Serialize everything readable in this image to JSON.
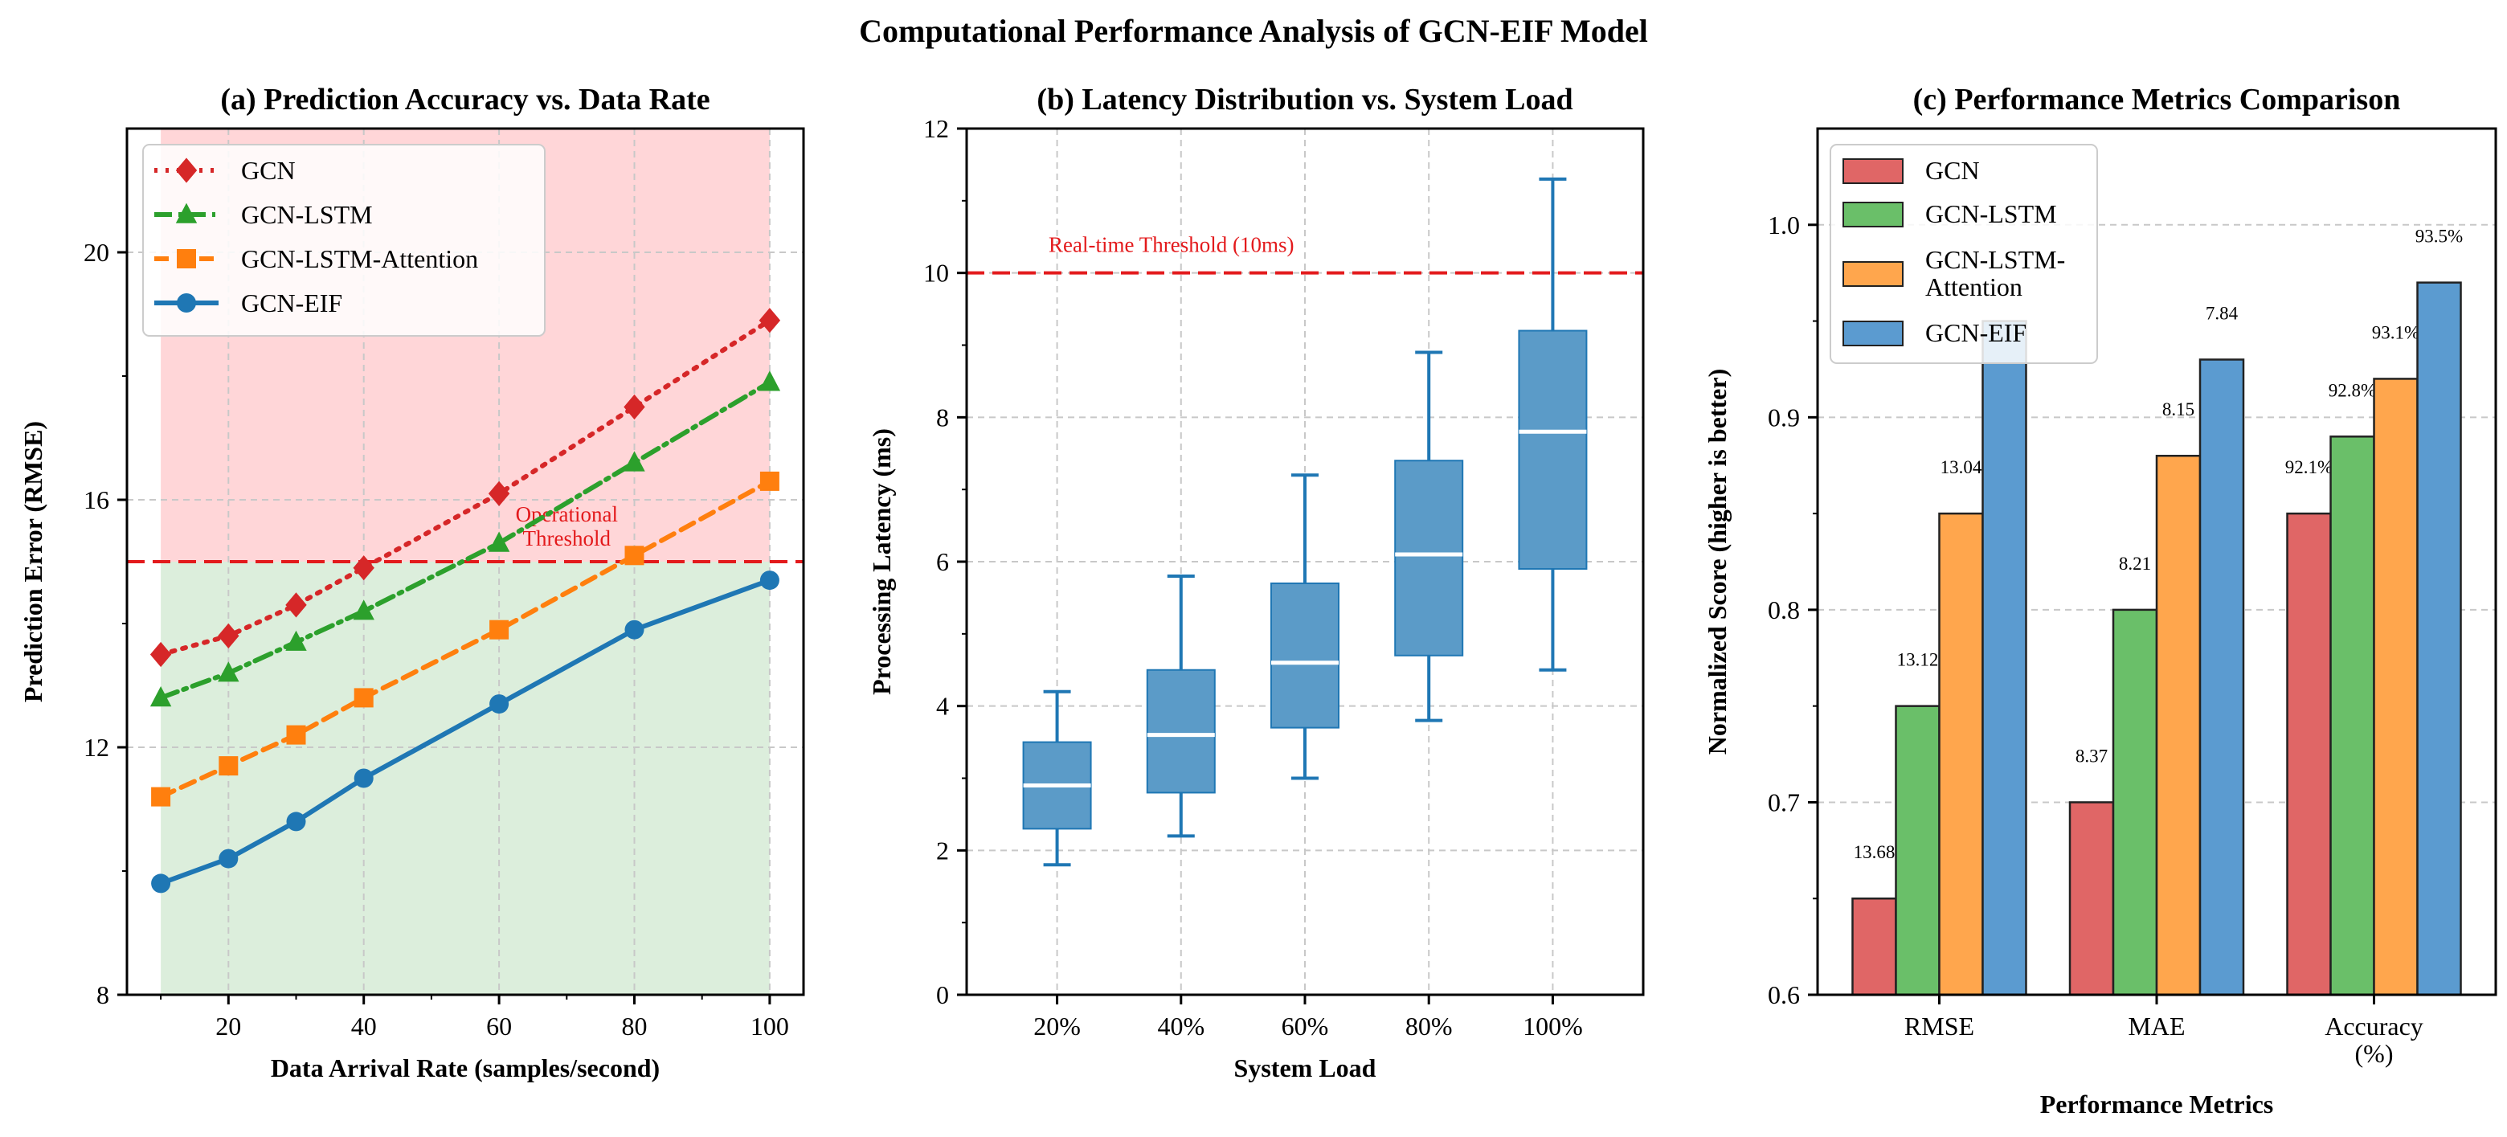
{
  "figure": {
    "title": "Computational Performance Analysis of GCN-EIF Model"
  },
  "colors": {
    "gcn": "#d62728",
    "gcn_lstm": "#2ca02c",
    "gcn_lstm_attention": "#ff7f0e",
    "gcn_eif": "#1f77b4",
    "threshold": "#e31a1c",
    "upper_region": "#ffd6d8",
    "lower_region": "#dceedc",
    "box_fill": "#5b9bc8",
    "bar_gcn": "#e06666",
    "bar_gcn_lstm": "#6abf69",
    "bar_gcn_lstm_attention": "#ffa64d",
    "bar_gcn_eif": "#5b9bd0"
  },
  "chart_data": [
    {
      "type": "line",
      "title": "(a) Prediction Accuracy vs. Data Rate",
      "xlabel": "Data Arrival Rate (samples/second)",
      "ylabel": "Prediction Error (RMSE)",
      "xlim": [
        5,
        105
      ],
      "ylim": [
        8,
        22
      ],
      "x_ticks": [
        20,
        40,
        60,
        80,
        100
      ],
      "y_ticks": [
        8,
        12,
        16,
        20
      ],
      "grid": true,
      "legend": "top-left",
      "x": [
        10,
        20,
        30,
        40,
        60,
        80,
        100
      ],
      "series": [
        {
          "name": "GCN",
          "values": [
            13.5,
            13.8,
            14.3,
            14.9,
            16.1,
            17.5,
            18.9
          ],
          "marker": "diamond",
          "dash": "dotted"
        },
        {
          "name": "GCN-LSTM",
          "values": [
            12.8,
            13.2,
            13.7,
            14.2,
            15.3,
            16.6,
            17.9
          ],
          "marker": "triangle",
          "dash": "dashdot"
        },
        {
          "name": "GCN-LSTM-Attention",
          "values": [
            11.2,
            11.7,
            12.2,
            12.8,
            13.9,
            15.1,
            16.3
          ],
          "marker": "square",
          "dash": "dashed"
        },
        {
          "name": "GCN-EIF",
          "values": [
            9.8,
            10.2,
            10.8,
            11.5,
            12.7,
            13.9,
            14.7
          ],
          "marker": "circle",
          "dash": "solid"
        }
      ],
      "threshold": {
        "value": 15,
        "label_line1": "Operational",
        "label_line2": "Threshold"
      },
      "shaded_x_range": [
        10,
        100
      ]
    },
    {
      "type": "box",
      "title": "(b) Latency Distribution vs. System Load",
      "xlabel": "System Load",
      "ylabel": "Processing Latency (ms)",
      "ylim": [
        0,
        12
      ],
      "y_ticks": [
        0,
        2,
        4,
        6,
        8,
        10,
        12
      ],
      "grid": true,
      "categories": [
        "20%",
        "40%",
        "60%",
        "80%",
        "100%"
      ],
      "boxes": [
        {
          "min": 1.8,
          "q1": 2.3,
          "median": 2.9,
          "q3": 3.5,
          "max": 4.2
        },
        {
          "min": 2.2,
          "q1": 2.8,
          "median": 3.6,
          "q3": 4.5,
          "max": 5.8
        },
        {
          "min": 3.0,
          "q1": 3.7,
          "median": 4.6,
          "q3": 5.7,
          "max": 7.2
        },
        {
          "min": 3.8,
          "q1": 4.7,
          "median": 6.1,
          "q3": 7.4,
          "max": 8.9
        },
        {
          "min": 4.5,
          "q1": 5.9,
          "median": 7.8,
          "q3": 9.2,
          "max": 11.3
        }
      ],
      "threshold": {
        "value": 10,
        "label": "Real-time Threshold (10ms)"
      }
    },
    {
      "type": "bar",
      "title": "(c) Performance Metrics Comparison",
      "xlabel": "Performance Metrics",
      "ylabel": "Normalized Score (higher is better)",
      "ylim": [
        0.6,
        1.05
      ],
      "y_ticks": [
        0.6,
        0.7,
        0.8,
        0.9,
        1.0
      ],
      "grid": true,
      "legend": "top-left",
      "categories": [
        "RMSE",
        "MAE",
        "Accuracy (%)"
      ],
      "category_labels": [
        [
          "RMSE"
        ],
        [
          "MAE"
        ],
        [
          "Accuracy",
          "(%)"
        ]
      ],
      "series": [
        {
          "name": "GCN",
          "values": [
            0.65,
            0.7,
            0.85
          ],
          "labels": [
            "13.68",
            "8.37",
            "92.1%"
          ]
        },
        {
          "name": "GCN-LSTM",
          "values": [
            0.75,
            0.8,
            0.89
          ],
          "labels": [
            "13.12",
            "8.21",
            "92.8%"
          ]
        },
        {
          "name": "GCN-LSTM-Attention",
          "legend_lines": [
            "GCN-LSTM-",
            "Attention"
          ],
          "values": [
            0.85,
            0.88,
            0.92
          ],
          "labels": [
            "13.04",
            "8.15",
            "93.1%"
          ]
        },
        {
          "name": "GCN-EIF",
          "values": [
            0.95,
            0.93,
            0.97
          ],
          "labels": [
            "",
            "7.84",
            "93.5%"
          ]
        }
      ]
    }
  ]
}
